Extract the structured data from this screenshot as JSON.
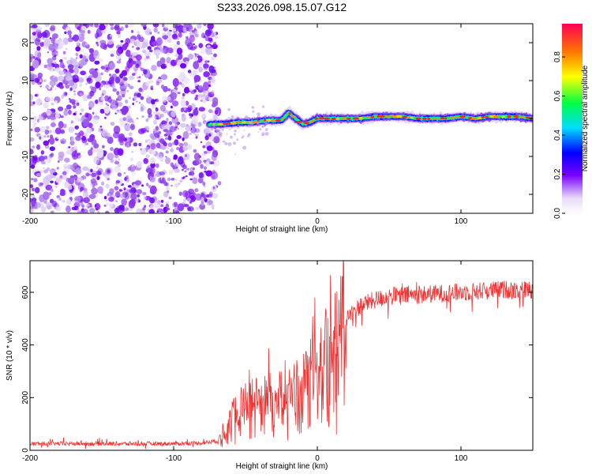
{
  "title": "S233.2026.098.15.07.G12",
  "chart_data": [
    {
      "type": "heatmap",
      "xlabel": "Height of straight line (km)",
      "ylabel": "Frequency (Hz)",
      "xlim": [
        -200,
        150
      ],
      "ylim": [
        -25,
        25
      ],
      "xticks": [
        "-200",
        "-100",
        "0",
        "100"
      ],
      "yticks": [
        "20",
        "10",
        "0",
        "-10",
        "-20"
      ],
      "noise_region_x": [
        -200,
        -70
      ],
      "ridge": {
        "description_x_from": -75,
        "x": [
          -75,
          -65,
          -55,
          -45,
          -35,
          -25,
          -20,
          -15,
          -10,
          -5,
          0,
          10,
          20,
          30,
          40,
          50,
          60,
          70,
          80,
          90,
          100,
          110,
          120,
          130,
          140,
          150
        ],
        "freq": [
          -1.5,
          -1.5,
          -1.0,
          -1.0,
          -0.5,
          -0.5,
          1.5,
          0.0,
          -1.5,
          -1.0,
          0.0,
          0.0,
          0.0,
          0.0,
          0.5,
          0.5,
          0.5,
          0.0,
          0.0,
          0.0,
          0.5,
          0.0,
          0.5,
          0.5,
          0.5,
          0.0
        ]
      }
    },
    {
      "type": "colorbar",
      "label": "Normalized spectral amplitude",
      "ticks": [
        "0.0",
        "0.2",
        "0.4",
        "0.6",
        "0.8"
      ],
      "range": [
        0,
        0.97
      ]
    },
    {
      "type": "line",
      "xlabel": "Height of straight line (km)",
      "ylabel": "SNR (10 * v/v)",
      "xlim": [
        -200,
        150
      ],
      "ylim": [
        0,
        720
      ],
      "xticks": [
        "-200",
        "-100",
        "0",
        "100"
      ],
      "yticks": [
        "0",
        "200",
        "400",
        "600"
      ],
      "color": "#ee3333",
      "trend": {
        "x": [
          -200,
          -150,
          -100,
          -80,
          -70,
          -65,
          -60,
          -50,
          -40,
          -30,
          -20,
          -10,
          0,
          10,
          20,
          30,
          40,
          50,
          70,
          100,
          130,
          150
        ],
        "y": [
          25,
          25,
          25,
          28,
          35,
          60,
          130,
          180,
          200,
          210,
          220,
          250,
          330,
          430,
          500,
          550,
          570,
          585,
          590,
          600,
          610,
          610
        ]
      }
    }
  ]
}
